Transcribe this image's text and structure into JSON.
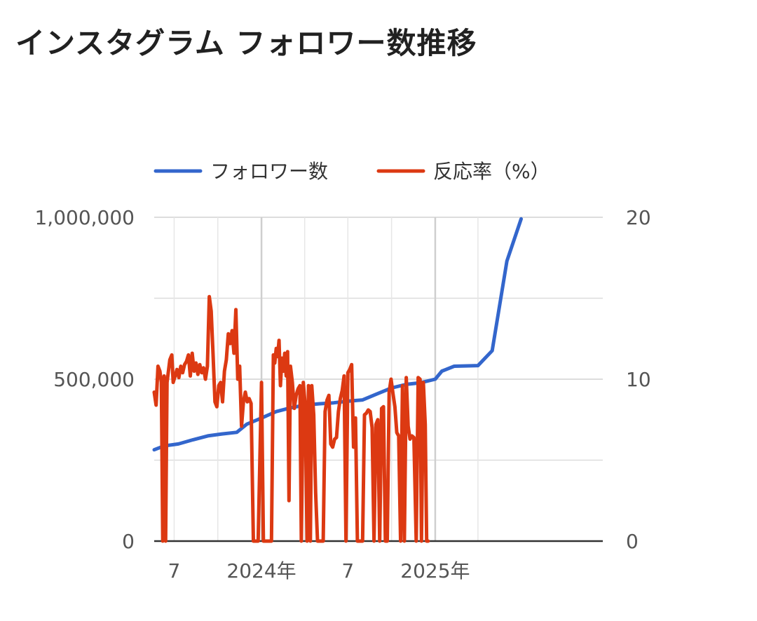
{
  "chart_data": {
    "type": "line",
    "title": "インスタグラム フォロワー数推移",
    "legend_position": "top",
    "grid": true,
    "x_ticks": [
      "7",
      "2024年",
      "7",
      "2025年"
    ],
    "y_left_ticks": [
      "1,000,000",
      "500,000",
      "0"
    ],
    "y_right_ticks": [
      "20",
      "10",
      "0"
    ],
    "y_left_range": [
      0,
      1000000
    ],
    "y_right_range": [
      0,
      20
    ],
    "x_range": [
      "2023-05-20",
      "2025-12-20"
    ],
    "series": [
      {
        "name": "フォロワー数",
        "axis": "left",
        "color": "#3366cc",
        "points": [
          [
            "2023-05-20",
            282000
          ],
          [
            "2023-06-10",
            294000
          ],
          [
            "2023-07-10",
            300000
          ],
          [
            "2023-08-10",
            313000
          ],
          [
            "2023-09-10",
            325000
          ],
          [
            "2023-10-10",
            331000
          ],
          [
            "2023-11-10",
            336000
          ],
          [
            "2023-12-01",
            361000
          ],
          [
            "2024-01-01",
            380000
          ],
          [
            "2024-02-01",
            400000
          ],
          [
            "2024-03-01",
            411000
          ],
          [
            "2024-04-01",
            420000
          ],
          [
            "2024-05-01",
            424000
          ],
          [
            "2024-06-01",
            427000
          ],
          [
            "2024-07-01",
            432000
          ],
          [
            "2024-08-01",
            436000
          ],
          [
            "2024-09-01",
            455000
          ],
          [
            "2024-10-01",
            473000
          ],
          [
            "2024-11-01",
            484000
          ],
          [
            "2024-12-01",
            489000
          ],
          [
            "2025-01-01",
            500000
          ],
          [
            "2025-01-15",
            525000
          ],
          [
            "2025-02-10",
            540000
          ],
          [
            "2025-04-01",
            542000
          ],
          [
            "2025-05-01",
            588000
          ],
          [
            "2025-06-01",
            865000
          ],
          [
            "2025-07-01",
            995000
          ]
        ]
      },
      {
        "name": "反応率（%）",
        "axis": "right",
        "color": "#dc3912",
        "points": [
          [
            "2023-05-20",
            9.2
          ],
          [
            "2023-05-24",
            8.4
          ],
          [
            "2023-05-28",
            10.8
          ],
          [
            "2023-06-01",
            10.5
          ],
          [
            "2023-06-04",
            9.8
          ],
          [
            "2023-06-07",
            0
          ],
          [
            "2023-06-10",
            10.2
          ],
          [
            "2023-06-13",
            0
          ],
          [
            "2023-06-16",
            9.8
          ],
          [
            "2023-06-19",
            10.5
          ],
          [
            "2023-06-22",
            11.2
          ],
          [
            "2023-06-26",
            11.5
          ],
          [
            "2023-06-29",
            9.8
          ],
          [
            "2023-07-03",
            10.2
          ],
          [
            "2023-07-07",
            10.6
          ],
          [
            "2023-07-11",
            10.1
          ],
          [
            "2023-07-15",
            10.8
          ],
          [
            "2023-07-19",
            10.4
          ],
          [
            "2023-07-23",
            10.9
          ],
          [
            "2023-07-27",
            11.1
          ],
          [
            "2023-07-31",
            11.5
          ],
          [
            "2023-08-04",
            10.2
          ],
          [
            "2023-08-08",
            11.6
          ],
          [
            "2023-08-12",
            10.5
          ],
          [
            "2023-08-16",
            11.0
          ],
          [
            "2023-08-20",
            10.3
          ],
          [
            "2023-08-24",
            10.9
          ],
          [
            "2023-08-28",
            10.4
          ],
          [
            "2023-09-01",
            10.7
          ],
          [
            "2023-09-05",
            10.0
          ],
          [
            "2023-09-09",
            10.8
          ],
          [
            "2023-09-13",
            15.1
          ],
          [
            "2023-09-17",
            14.2
          ],
          [
            "2023-09-21",
            11.5
          ],
          [
            "2023-09-25",
            8.6
          ],
          [
            "2023-09-29",
            8.3
          ],
          [
            "2023-10-03",
            9.6
          ],
          [
            "2023-10-07",
            9.8
          ],
          [
            "2023-10-11",
            8.6
          ],
          [
            "2023-10-15",
            10.5
          ],
          [
            "2023-10-19",
            11.2
          ],
          [
            "2023-10-23",
            12.8
          ],
          [
            "2023-10-27",
            12.2
          ],
          [
            "2023-10-31",
            13.0
          ],
          [
            "2023-11-04",
            11.6
          ],
          [
            "2023-11-08",
            14.3
          ],
          [
            "2023-11-12",
            10.0
          ],
          [
            "2023-11-16",
            10.8
          ],
          [
            "2023-11-20",
            7.1
          ],
          [
            "2023-11-24",
            8.6
          ],
          [
            "2023-11-28",
            9.2
          ],
          [
            "2023-12-02",
            8.6
          ],
          [
            "2023-12-06",
            8.8
          ],
          [
            "2023-12-10",
            8.5
          ],
          [
            "2023-12-15",
            0
          ],
          [
            "2023-12-25",
            0
          ],
          [
            "2024-01-01",
            9.8
          ],
          [
            "2024-01-05",
            0
          ],
          [
            "2024-01-15",
            0
          ],
          [
            "2024-01-22",
            0
          ],
          [
            "2024-01-26",
            11.5
          ],
          [
            "2024-01-29",
            11.0
          ],
          [
            "2024-02-01",
            11.9
          ],
          [
            "2024-02-04",
            11.4
          ],
          [
            "2024-02-07",
            12.4
          ],
          [
            "2024-02-10",
            9.6
          ],
          [
            "2024-02-13",
            11.3
          ],
          [
            "2024-02-16",
            10.5
          ],
          [
            "2024-02-19",
            11.6
          ],
          [
            "2024-02-22",
            10.2
          ],
          [
            "2024-02-25",
            11.7
          ],
          [
            "2024-02-28",
            2.5
          ],
          [
            "2024-03-02",
            10.8
          ],
          [
            "2024-03-06",
            9.8
          ],
          [
            "2024-03-10",
            8.2
          ],
          [
            "2024-03-14",
            9.0
          ],
          [
            "2024-03-18",
            9.4
          ],
          [
            "2024-03-22",
            9.6
          ],
          [
            "2024-03-25",
            0
          ],
          [
            "2024-03-29",
            9.8
          ],
          [
            "2024-04-02",
            8.4
          ],
          [
            "2024-04-06",
            0
          ],
          [
            "2024-04-09",
            9.6
          ],
          [
            "2024-04-13",
            0
          ],
          [
            "2024-04-16",
            9.6
          ],
          [
            "2024-04-20",
            7.8
          ],
          [
            "2024-04-24",
            3.0
          ],
          [
            "2024-04-28",
            0
          ],
          [
            "2024-05-10",
            0
          ],
          [
            "2024-05-14",
            8.0
          ],
          [
            "2024-05-18",
            8.7
          ],
          [
            "2024-05-22",
            9.0
          ],
          [
            "2024-05-26",
            6.0
          ],
          [
            "2024-05-30",
            5.8
          ],
          [
            "2024-06-03",
            6.3
          ],
          [
            "2024-06-07",
            6.4
          ],
          [
            "2024-06-11",
            8.0
          ],
          [
            "2024-06-15",
            8.8
          ],
          [
            "2024-06-19",
            9.3
          ],
          [
            "2024-06-23",
            10.2
          ],
          [
            "2024-06-27",
            0
          ],
          [
            "2024-07-01",
            10.4
          ],
          [
            "2024-07-05",
            10.6
          ],
          [
            "2024-07-09",
            10.9
          ],
          [
            "2024-07-13",
            5.8
          ],
          [
            "2024-07-17",
            7.6
          ],
          [
            "2024-07-21",
            0
          ],
          [
            "2024-08-01",
            0
          ],
          [
            "2024-08-05",
            7.8
          ],
          [
            "2024-08-09",
            7.9
          ],
          [
            "2024-08-13",
            8.1
          ],
          [
            "2024-08-17",
            8.0
          ],
          [
            "2024-08-21",
            7.0
          ],
          [
            "2024-08-25",
            0
          ],
          [
            "2024-08-29",
            7.2
          ],
          [
            "2024-09-02",
            7.5
          ],
          [
            "2024-09-06",
            0
          ],
          [
            "2024-09-10",
            8.2
          ],
          [
            "2024-09-14",
            8.3
          ],
          [
            "2024-09-18",
            0
          ],
          [
            "2024-09-22",
            0
          ],
          [
            "2024-09-26",
            9.2
          ],
          [
            "2024-09-30",
            10.0
          ],
          [
            "2024-10-04",
            9.1
          ],
          [
            "2024-10-08",
            8.3
          ],
          [
            "2024-10-12",
            6.7
          ],
          [
            "2024-10-16",
            6.5
          ],
          [
            "2024-10-20",
            0
          ],
          [
            "2024-10-24",
            9.6
          ],
          [
            "2024-10-28",
            0
          ],
          [
            "2024-11-01",
            10.1
          ],
          [
            "2024-11-05",
            7.1
          ],
          [
            "2024-11-09",
            6.3
          ],
          [
            "2024-11-13",
            6.5
          ],
          [
            "2024-11-17",
            6.4
          ],
          [
            "2024-11-22",
            0
          ],
          [
            "2024-11-26",
            10.1
          ],
          [
            "2024-11-30",
            10.0
          ],
          [
            "2024-12-03",
            0
          ],
          [
            "2024-12-07",
            9.8
          ],
          [
            "2024-12-11",
            7.2
          ],
          [
            "2024-12-14",
            0
          ],
          [
            "2024-12-17",
            0
          ]
        ]
      }
    ]
  },
  "axis_colors": {
    "grid": "#dddddd",
    "baseline": "#333333"
  }
}
